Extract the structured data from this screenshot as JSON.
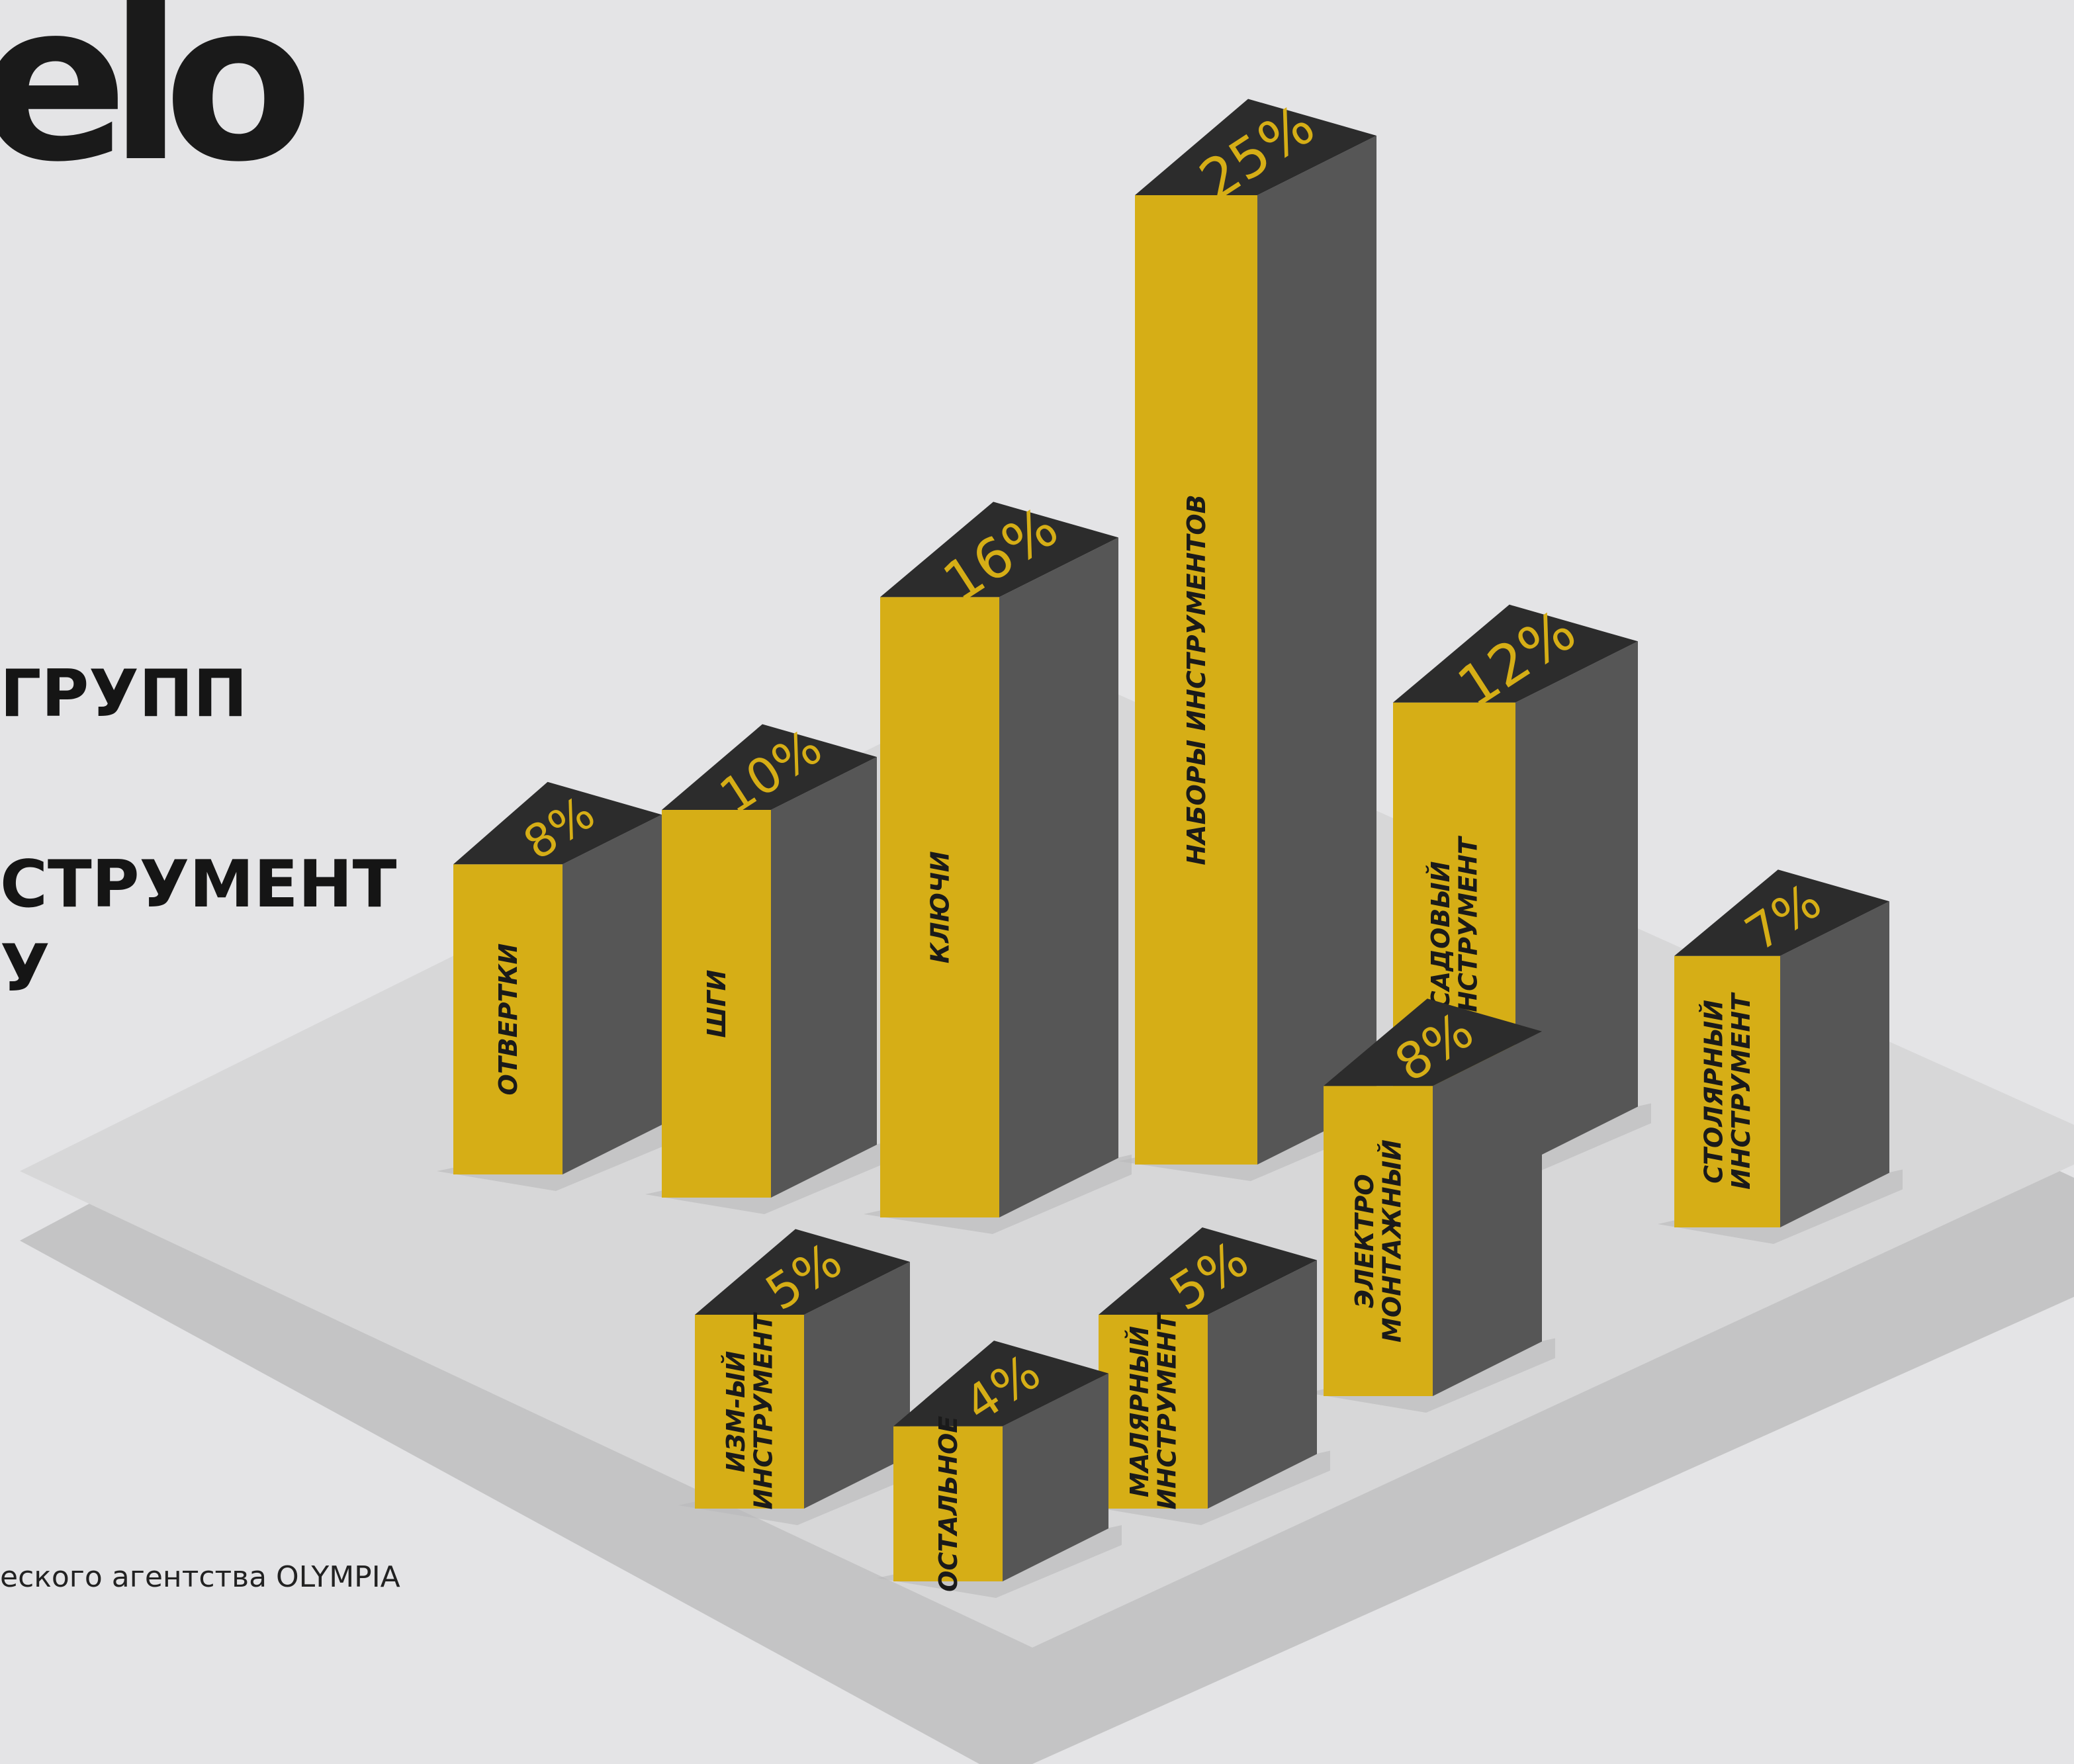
{
  "logo": {
    "text": "elo"
  },
  "heading": {
    "line1": "ГРУПП",
    "line2": "СТРУМЕНТ",
    "line3": "У"
  },
  "source": {
    "text": "еского агентства OLYMPIA"
  },
  "colors": {
    "accent": "#d6ae16",
    "side": "#565656",
    "top": "#2c2c2c",
    "background": "#e4e4e6",
    "platform": "#d7d7d8",
    "platform_shadow": "#c4c4c5"
  },
  "chart_data": {
    "type": "bar",
    "style": "isometric-3d",
    "unit": "%",
    "categories": [
      "ОТВЕРТКИ",
      "ШГИ",
      "КЛЮЧИ",
      "НАБОРЫ ИНСТРУМЕНТОВ",
      "САДОВЫЙ ИНСТРУМЕНТ",
      "СТОЛЯРНЫЙ ИНСТРУМЕНТ",
      "ИЗМ-ЫЙ ИНСТРУМЕНТ",
      "ОСТАЛЬНОЕ",
      "МАЛЯРНЫЙ ИНСТРУМЕНТ",
      "ЭЛЕКТРО МОНТАЖНЫЙ"
    ],
    "values": [
      8,
      10,
      16,
      25,
      12,
      7,
      5,
      4,
      5,
      8
    ],
    "value_labels": [
      "8%",
      "10%",
      "16%",
      "25%",
      "12%",
      "7%",
      "5%",
      "4%",
      "5%",
      "8%"
    ],
    "label_lines": [
      [
        "ОТВЕРТКИ"
      ],
      [
        "ШГИ"
      ],
      [
        "КЛЮЧИ"
      ],
      [
        "НАБОРЫ ИНСТРУМЕНТОВ"
      ],
      [
        "САДОВЫЙ",
        "ИНСТРУМЕНТ"
      ],
      [
        "СТОЛЯРНЫЙ",
        "ИНСТРУМЕНТ"
      ],
      [
        "ИЗМ-ЫЙ",
        "ИНСТРУМЕНТ"
      ],
      [
        "ОСТАЛЬНОЕ"
      ],
      [
        "МАЛЯРНЫЙ",
        "ИНСТРУМЕНТ"
      ],
      [
        "ЭЛЕКТРО",
        "МОНТАЖНЫЙ"
      ]
    ],
    "grid": false,
    "legend": "none"
  }
}
